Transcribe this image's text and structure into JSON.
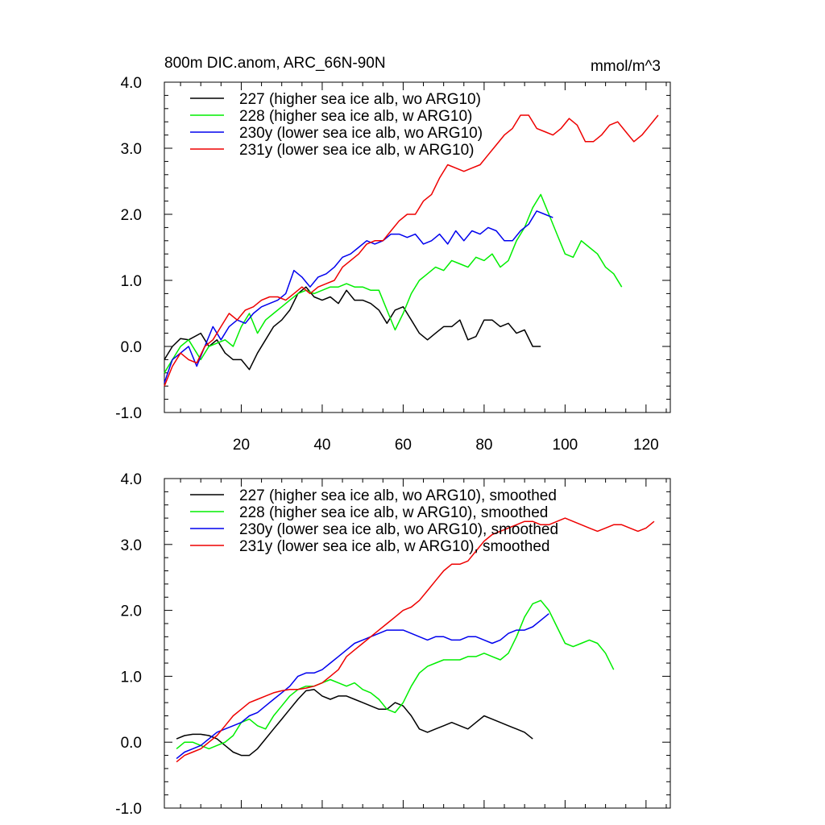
{
  "colors": {
    "s227": "#000000",
    "s228": "#00ee00",
    "s230": "#0000ee",
    "s231": "#ee0000"
  },
  "chart_data": [
    {
      "type": "line",
      "title": "800m DIC.anom, ARC_66N-90N",
      "units": "mmol/m^3",
      "xlabel": "",
      "ylabel": "",
      "xlim": [
        1,
        126
      ],
      "ylim": [
        -1.0,
        4.0
      ],
      "ytick_labels": [
        "4.0",
        "3.0",
        "2.0",
        "1.0",
        "0.0",
        "-1.0"
      ],
      "xtick_labels": [
        "20",
        "40",
        "60",
        "80",
        "100",
        "120"
      ],
      "series": [
        {
          "name": "227 (higher sea ice alb, wo ARG10)",
          "color_key": "s227",
          "x": [
            1,
            3,
            5,
            7,
            10,
            12,
            14,
            16,
            18,
            20,
            22,
            24,
            26,
            28,
            30,
            32,
            34,
            36,
            38,
            40,
            42,
            44,
            46,
            48,
            50,
            52,
            54,
            56,
            58,
            60,
            62,
            64,
            66,
            68,
            70,
            72,
            74,
            76,
            78,
            80,
            82,
            84,
            86,
            88,
            90,
            92,
            94
          ],
          "y": [
            -0.2,
            0.0,
            0.12,
            0.1,
            0.2,
            0.0,
            0.1,
            -0.1,
            -0.2,
            -0.2,
            -0.35,
            -0.1,
            0.1,
            0.3,
            0.4,
            0.55,
            0.8,
            0.9,
            0.75,
            0.7,
            0.75,
            0.65,
            0.85,
            0.7,
            0.7,
            0.65,
            0.55,
            0.35,
            0.55,
            0.6,
            0.4,
            0.2,
            0.1,
            0.2,
            0.3,
            0.3,
            0.4,
            0.1,
            0.15,
            0.4,
            0.4,
            0.3,
            0.35,
            0.2,
            0.25,
            0.0,
            0.0
          ]
        },
        {
          "name": "228 (higher sea ice alb, w ARG10)",
          "color_key": "s228",
          "x": [
            1,
            3,
            5,
            7,
            10,
            12,
            14,
            16,
            18,
            20,
            22,
            24,
            26,
            28,
            30,
            32,
            34,
            36,
            38,
            40,
            42,
            44,
            46,
            48,
            50,
            52,
            54,
            56,
            58,
            60,
            62,
            64,
            66,
            68,
            70,
            72,
            74,
            76,
            78,
            80,
            82,
            84,
            86,
            88,
            90,
            92,
            94,
            96,
            98,
            100,
            102,
            104,
            106,
            108,
            110,
            112,
            114
          ],
          "y": [
            -0.4,
            -0.2,
            0.0,
            0.1,
            -0.2,
            0.0,
            0.05,
            0.1,
            0.0,
            0.3,
            0.5,
            0.2,
            0.4,
            0.5,
            0.6,
            0.7,
            0.8,
            0.85,
            0.8,
            0.85,
            0.9,
            0.9,
            0.95,
            0.9,
            0.9,
            0.85,
            0.85,
            0.55,
            0.25,
            0.5,
            0.8,
            1.0,
            1.1,
            1.2,
            1.15,
            1.3,
            1.25,
            1.2,
            1.35,
            1.3,
            1.4,
            1.2,
            1.3,
            1.6,
            1.8,
            2.1,
            2.3,
            2.0,
            1.7,
            1.4,
            1.35,
            1.6,
            1.5,
            1.4,
            1.2,
            1.1,
            0.9
          ]
        },
        {
          "name": "230y (lower sea ice alb, wo ARG10)",
          "color_key": "s230",
          "x": [
            1,
            3,
            5,
            7,
            9,
            11,
            13,
            15,
            17,
            19,
            21,
            23,
            25,
            27,
            29,
            31,
            33,
            35,
            37,
            39,
            41,
            43,
            45,
            47,
            49,
            51,
            53,
            55,
            57,
            59,
            61,
            63,
            65,
            67,
            69,
            71,
            73,
            75,
            77,
            79,
            81,
            83,
            85,
            87,
            89,
            91,
            93,
            95,
            97
          ],
          "y": [
            -0.55,
            -0.2,
            -0.1,
            0.0,
            -0.3,
            0.0,
            0.3,
            0.1,
            0.3,
            0.4,
            0.35,
            0.5,
            0.6,
            0.65,
            0.7,
            0.8,
            1.15,
            1.05,
            0.9,
            1.05,
            1.1,
            1.2,
            1.35,
            1.4,
            1.5,
            1.6,
            1.55,
            1.6,
            1.7,
            1.7,
            1.65,
            1.7,
            1.55,
            1.6,
            1.7,
            1.55,
            1.75,
            1.6,
            1.75,
            1.7,
            1.8,
            1.75,
            1.6,
            1.6,
            1.75,
            1.85,
            2.05,
            2.0,
            1.95
          ]
        },
        {
          "name": "231y (lower sea ice alb, w ARG10)",
          "color_key": "s231",
          "x": [
            1,
            3,
            5,
            7,
            9,
            11,
            13,
            15,
            17,
            19,
            21,
            23,
            25,
            27,
            29,
            31,
            33,
            35,
            37,
            39,
            41,
            43,
            45,
            47,
            49,
            51,
            53,
            55,
            57,
            59,
            61,
            63,
            65,
            67,
            69,
            71,
            73,
            75,
            77,
            79,
            81,
            83,
            85,
            87,
            89,
            91,
            93,
            95,
            97,
            99,
            101,
            103,
            105,
            107,
            109,
            111,
            113,
            115,
            117,
            119,
            121,
            123
          ],
          "y": [
            -0.6,
            -0.3,
            -0.1,
            -0.2,
            -0.25,
            0.0,
            0.1,
            0.3,
            0.5,
            0.4,
            0.55,
            0.6,
            0.7,
            0.75,
            0.75,
            0.7,
            0.8,
            0.9,
            0.8,
            0.9,
            0.95,
            1.0,
            1.2,
            1.3,
            1.4,
            1.55,
            1.6,
            1.6,
            1.75,
            1.9,
            2.0,
            2.0,
            2.2,
            2.3,
            2.55,
            2.75,
            2.7,
            2.65,
            2.7,
            2.75,
            2.9,
            3.05,
            3.2,
            3.3,
            3.5,
            3.5,
            3.3,
            3.25,
            3.2,
            3.3,
            3.45,
            3.35,
            3.1,
            3.1,
            3.2,
            3.35,
            3.4,
            3.25,
            3.1,
            3.2,
            3.35,
            3.5
          ]
        }
      ]
    },
    {
      "type": "line",
      "title": "",
      "units": "",
      "xlabel": "",
      "ylabel": "",
      "xlim": [
        1,
        126
      ],
      "ylim": [
        -1.0,
        4.0
      ],
      "ytick_labels": [
        "4.0",
        "3.0",
        "2.0",
        "1.0",
        "0.0",
        "-1.0"
      ],
      "xtick_labels": [],
      "series": [
        {
          "name": "227 (higher sea ice alb, wo ARG10), smoothed",
          "color_key": "s227",
          "x": [
            4,
            6,
            8,
            10,
            12,
            14,
            16,
            18,
            20,
            22,
            24,
            26,
            28,
            30,
            32,
            34,
            36,
            38,
            40,
            42,
            44,
            46,
            48,
            50,
            52,
            54,
            56,
            58,
            60,
            62,
            64,
            66,
            68,
            70,
            72,
            74,
            76,
            78,
            80,
            82,
            84,
            86,
            88,
            90,
            92
          ],
          "y": [
            0.05,
            0.1,
            0.12,
            0.12,
            0.1,
            0.05,
            -0.05,
            -0.15,
            -0.2,
            -0.2,
            -0.1,
            0.05,
            0.2,
            0.35,
            0.5,
            0.65,
            0.78,
            0.8,
            0.7,
            0.65,
            0.7,
            0.7,
            0.65,
            0.6,
            0.55,
            0.5,
            0.5,
            0.6,
            0.55,
            0.4,
            0.2,
            0.15,
            0.2,
            0.25,
            0.3,
            0.25,
            0.2,
            0.3,
            0.4,
            0.35,
            0.3,
            0.25,
            0.2,
            0.15,
            0.05
          ]
        },
        {
          "name": "228 (higher sea ice alb, w ARG10), smoothed",
          "color_key": "s228",
          "x": [
            4,
            6,
            8,
            10,
            12,
            14,
            16,
            18,
            20,
            22,
            24,
            26,
            28,
            30,
            32,
            34,
            36,
            38,
            40,
            42,
            44,
            46,
            48,
            50,
            52,
            54,
            56,
            58,
            60,
            62,
            64,
            66,
            68,
            70,
            72,
            74,
            76,
            78,
            80,
            82,
            84,
            86,
            88,
            90,
            92,
            94,
            96,
            98,
            100,
            102,
            104,
            106,
            108,
            110,
            112
          ],
          "y": [
            -0.1,
            0.0,
            0.0,
            -0.05,
            -0.1,
            -0.05,
            0.0,
            0.1,
            0.3,
            0.35,
            0.25,
            0.2,
            0.4,
            0.55,
            0.7,
            0.8,
            0.85,
            0.85,
            0.9,
            0.95,
            0.9,
            0.85,
            0.9,
            0.8,
            0.75,
            0.65,
            0.5,
            0.45,
            0.6,
            0.85,
            1.05,
            1.15,
            1.2,
            1.25,
            1.25,
            1.25,
            1.3,
            1.3,
            1.35,
            1.3,
            1.25,
            1.35,
            1.6,
            1.9,
            2.1,
            2.15,
            2.0,
            1.75,
            1.5,
            1.45,
            1.5,
            1.55,
            1.5,
            1.35,
            1.1
          ]
        },
        {
          "name": "230y (lower sea ice alb, wo ARG10), smoothed",
          "color_key": "s230",
          "x": [
            4,
            6,
            8,
            10,
            12,
            14,
            16,
            18,
            20,
            22,
            24,
            26,
            28,
            30,
            32,
            34,
            36,
            38,
            40,
            42,
            44,
            46,
            48,
            50,
            52,
            54,
            56,
            58,
            60,
            62,
            64,
            66,
            68,
            70,
            72,
            74,
            76,
            78,
            80,
            82,
            84,
            86,
            88,
            90,
            92,
            94,
            96
          ],
          "y": [
            -0.25,
            -0.15,
            -0.1,
            -0.05,
            0.05,
            0.15,
            0.2,
            0.25,
            0.3,
            0.4,
            0.45,
            0.55,
            0.65,
            0.75,
            0.85,
            1.0,
            1.05,
            1.05,
            1.1,
            1.2,
            1.3,
            1.4,
            1.5,
            1.55,
            1.6,
            1.65,
            1.7,
            1.7,
            1.7,
            1.65,
            1.6,
            1.55,
            1.6,
            1.6,
            1.55,
            1.55,
            1.6,
            1.6,
            1.55,
            1.5,
            1.55,
            1.65,
            1.7,
            1.7,
            1.75,
            1.85,
            1.95
          ]
        },
        {
          "name": "231y (lower sea ice alb, w ARG10), smoothed",
          "color_key": "s231",
          "x": [
            4,
            6,
            8,
            10,
            12,
            14,
            16,
            18,
            20,
            22,
            24,
            26,
            28,
            30,
            32,
            34,
            36,
            38,
            40,
            42,
            44,
            46,
            48,
            50,
            52,
            54,
            56,
            58,
            60,
            62,
            64,
            66,
            68,
            70,
            72,
            74,
            76,
            78,
            80,
            82,
            84,
            86,
            88,
            90,
            92,
            94,
            96,
            98,
            100,
            102,
            104,
            106,
            108,
            110,
            112,
            114,
            116,
            118,
            120,
            122
          ],
          "y": [
            -0.3,
            -0.2,
            -0.15,
            -0.1,
            0.0,
            0.1,
            0.25,
            0.4,
            0.5,
            0.6,
            0.65,
            0.7,
            0.75,
            0.78,
            0.8,
            0.8,
            0.82,
            0.85,
            0.9,
            1.0,
            1.1,
            1.3,
            1.4,
            1.5,
            1.6,
            1.7,
            1.8,
            1.9,
            2.0,
            2.05,
            2.15,
            2.3,
            2.45,
            2.6,
            2.7,
            2.7,
            2.75,
            2.9,
            3.05,
            3.15,
            3.2,
            3.25,
            3.3,
            3.35,
            3.35,
            3.3,
            3.3,
            3.35,
            3.4,
            3.35,
            3.3,
            3.25,
            3.2,
            3.25,
            3.3,
            3.3,
            3.25,
            3.2,
            3.25,
            3.35
          ]
        }
      ]
    }
  ]
}
